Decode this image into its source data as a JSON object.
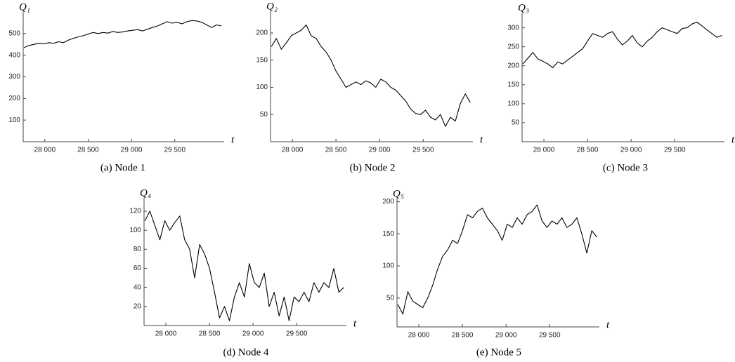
{
  "chart_data": [
    {
      "type": "line",
      "caption": "(a)  Node 1",
      "ylabel": "Q₁",
      "xlabel": "t",
      "color": "#000000",
      "xlim": [
        27750,
        30070
      ],
      "ylim": [
        0,
        600
      ],
      "xticks": [
        {
          "value": 28000,
          "label": "28 000"
        },
        {
          "value": 28500,
          "label": "28 500"
        },
        {
          "value": 29000,
          "label": "29 000"
        },
        {
          "value": 29500,
          "label": "29 500"
        }
      ],
      "yticks": [
        100,
        200,
        300,
        400,
        500
      ],
      "x": [
        27760,
        27817,
        27874,
        27931,
        27988,
        28045,
        28102,
        28159,
        28216,
        28273,
        28330,
        28387,
        28444,
        28501,
        28558,
        28615,
        28672,
        28729,
        28786,
        28843,
        28900,
        28957,
        29014,
        29071,
        29128,
        29185,
        29242,
        29299,
        29356,
        29413,
        29470,
        29527,
        29584,
        29641,
        29698,
        29755,
        29812,
        29869,
        29926,
        29983,
        30040
      ],
      "values": [
        435,
        445,
        450,
        455,
        452,
        458,
        455,
        462,
        458,
        470,
        478,
        485,
        490,
        498,
        505,
        500,
        505,
        502,
        510,
        505,
        508,
        512,
        515,
        518,
        512,
        520,
        528,
        535,
        545,
        555,
        548,
        552,
        545,
        555,
        560,
        558,
        552,
        540,
        528,
        540,
        535
      ]
    },
    {
      "type": "line",
      "caption": "(b)  Node 2",
      "ylabel": "Q₂",
      "xlabel": "t",
      "color": "#000000",
      "xlim": [
        27750,
        30070
      ],
      "ylim": [
        0,
        240
      ],
      "xticks": [
        {
          "value": 28000,
          "label": "28 000"
        },
        {
          "value": 28500,
          "label": "28 500"
        },
        {
          "value": 29000,
          "label": "29 000"
        },
        {
          "value": 29500,
          "label": "29 500"
        }
      ],
      "yticks": [
        50,
        100,
        150,
        200
      ],
      "x": [
        27760,
        27817,
        27874,
        27931,
        27988,
        28045,
        28102,
        28159,
        28216,
        28273,
        28330,
        28387,
        28444,
        28501,
        28558,
        28615,
        28672,
        28729,
        28786,
        28843,
        28900,
        28957,
        29014,
        29071,
        29128,
        29185,
        29242,
        29299,
        29356,
        29413,
        29470,
        29527,
        29584,
        29641,
        29698,
        29755,
        29812,
        29869,
        29926,
        29983,
        30040
      ],
      "values": [
        175,
        190,
        170,
        182,
        195,
        200,
        205,
        215,
        195,
        190,
        175,
        165,
        150,
        130,
        115,
        100,
        105,
        110,
        105,
        112,
        108,
        100,
        115,
        110,
        100,
        95,
        85,
        75,
        60,
        52,
        50,
        58,
        45,
        40,
        50,
        28,
        45,
        38,
        70,
        88,
        72
      ]
    },
    {
      "type": "line",
      "caption": "(c)  Node 3",
      "ylabel": "Q₃",
      "xlabel": "t",
      "color": "#000000",
      "xlim": [
        27750,
        30070
      ],
      "ylim": [
        0,
        340
      ],
      "xticks": [
        {
          "value": 28000,
          "label": "28 000"
        },
        {
          "value": 28500,
          "label": "28 500"
        },
        {
          "value": 29000,
          "label": "29 000"
        },
        {
          "value": 29500,
          "label": "29 500"
        }
      ],
      "yticks": [
        50,
        100,
        150,
        200,
        250,
        300
      ],
      "x": [
        27760,
        27817,
        27874,
        27931,
        27988,
        28045,
        28102,
        28159,
        28216,
        28273,
        28330,
        28387,
        28444,
        28501,
        28558,
        28615,
        28672,
        28729,
        28786,
        28843,
        28900,
        28957,
        29014,
        29071,
        29128,
        29185,
        29242,
        29299,
        29356,
        29413,
        29470,
        29527,
        29584,
        29641,
        29698,
        29755,
        29812,
        29869,
        29926,
        29983,
        30040
      ],
      "values": [
        205,
        220,
        235,
        218,
        212,
        205,
        195,
        210,
        205,
        215,
        225,
        235,
        245,
        265,
        285,
        280,
        275,
        285,
        290,
        270,
        255,
        265,
        280,
        260,
        250,
        265,
        275,
        290,
        300,
        295,
        290,
        285,
        298,
        300,
        310,
        315,
        305,
        295,
        285,
        275,
        280
      ]
    },
    {
      "type": "line",
      "caption": "(d)  Node 4",
      "ylabel": "Q₄",
      "xlabel": "t",
      "color": "#000000",
      "xlim": [
        27750,
        30070
      ],
      "ylim": [
        0,
        134
      ],
      "xticks": [
        {
          "value": 28000,
          "label": "28 000"
        },
        {
          "value": 28500,
          "label": "28 500"
        },
        {
          "value": 29000,
          "label": "29 000"
        },
        {
          "value": 29500,
          "label": "29 500"
        }
      ],
      "yticks": [
        20,
        40,
        60,
        80,
        100,
        120
      ],
      "x": [
        27760,
        27817,
        27874,
        27931,
        27988,
        28045,
        28102,
        28159,
        28216,
        28273,
        28330,
        28387,
        28444,
        28501,
        28558,
        28615,
        28672,
        28729,
        28786,
        28843,
        28900,
        28957,
        29014,
        29071,
        29128,
        29185,
        29242,
        29299,
        29356,
        29413,
        29470,
        29527,
        29584,
        29641,
        29698,
        29755,
        29812,
        29869,
        29926,
        29983,
        30040
      ],
      "values": [
        110,
        120,
        105,
        90,
        110,
        100,
        108,
        115,
        90,
        80,
        50,
        85,
        75,
        60,
        35,
        8,
        20,
        5,
        30,
        45,
        30,
        65,
        45,
        40,
        55,
        20,
        35,
        10,
        30,
        5,
        30,
        25,
        35,
        25,
        45,
        35,
        45,
        40,
        60,
        35,
        40
      ]
    },
    {
      "type": "line",
      "caption": "(e)  Node 5",
      "ylabel": "Q₅",
      "xlabel": "t",
      "color": "#000000",
      "xlim": [
        27750,
        30070
      ],
      "ylim": [
        5,
        205
      ],
      "xticks": [
        {
          "value": 28000,
          "label": "28 000"
        },
        {
          "value": 28500,
          "label": "28 500"
        },
        {
          "value": 29000,
          "label": "29 000"
        },
        {
          "value": 29500,
          "label": "29 500"
        }
      ],
      "yticks": [
        50,
        100,
        150,
        200
      ],
      "x": [
        27760,
        27817,
        27874,
        27931,
        27988,
        28045,
        28102,
        28159,
        28216,
        28273,
        28330,
        28387,
        28444,
        28501,
        28558,
        28615,
        28672,
        28729,
        28786,
        28843,
        28900,
        28957,
        29014,
        29071,
        29128,
        29185,
        29242,
        29299,
        29356,
        29413,
        29470,
        29527,
        29584,
        29641,
        29698,
        29755,
        29812,
        29869,
        29926,
        29983,
        30040
      ],
      "values": [
        40,
        25,
        60,
        45,
        40,
        35,
        50,
        70,
        95,
        115,
        125,
        140,
        135,
        155,
        180,
        175,
        185,
        190,
        175,
        165,
        155,
        140,
        165,
        160,
        175,
        165,
        180,
        185,
        195,
        170,
        160,
        170,
        165,
        175,
        160,
        165,
        175,
        150,
        120,
        155,
        145
      ]
    }
  ]
}
